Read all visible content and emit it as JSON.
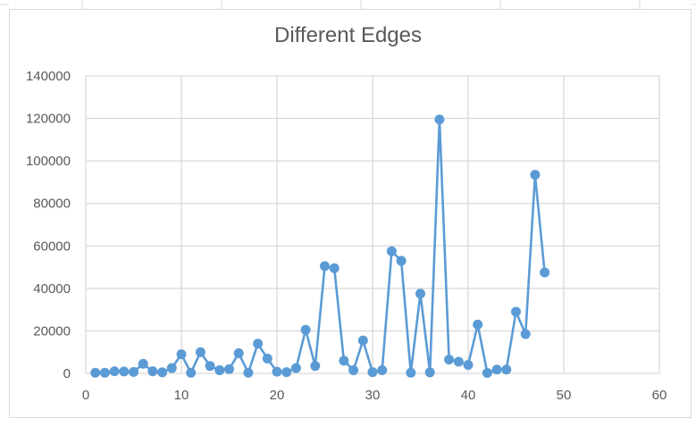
{
  "chart_data": {
    "type": "scatter",
    "title": "Different Edges",
    "xlabel": "",
    "ylabel": "",
    "xlim": [
      0,
      60
    ],
    "ylim": [
      0,
      140000
    ],
    "xticks": [
      "0",
      "10",
      "20",
      "30",
      "40",
      "50",
      "60"
    ],
    "yticks": [
      "0",
      "20000",
      "40000",
      "60000",
      "80000",
      "100000",
      "120000",
      "140000"
    ],
    "grid": true,
    "legend": "none",
    "series_color": "#5b9bd5",
    "series": [
      {
        "x": [
          1,
          2,
          3,
          4,
          5,
          6,
          7,
          8,
          9,
          10,
          11,
          12,
          13,
          14,
          15,
          16,
          17,
          18,
          19,
          20,
          21,
          22,
          23,
          24,
          25,
          26,
          27,
          28,
          29,
          30,
          31,
          32,
          33,
          34,
          35,
          36,
          37,
          38,
          39,
          40,
          41,
          42,
          43,
          44,
          45,
          46,
          47,
          48
        ],
        "values": [
          300,
          300,
          1000,
          900,
          700,
          4500,
          1000,
          500,
          2500,
          9000,
          300,
          10000,
          3500,
          1500,
          2000,
          9500,
          300,
          14000,
          7000,
          800,
          600,
          2500,
          20500,
          3500,
          50500,
          49500,
          6000,
          1500,
          15500,
          600,
          1500,
          57500,
          53000,
          300,
          37500,
          500,
          119500,
          6500,
          5500,
          4000,
          23000,
          200,
          1800,
          1800,
          29000,
          18500,
          93500,
          47500
        ]
      }
    ]
  }
}
